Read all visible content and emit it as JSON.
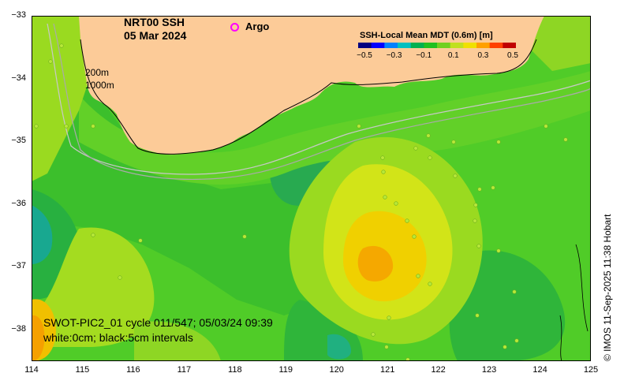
{
  "title": {
    "line1": "NRT00 SSH",
    "line2": "05 Mar 2024"
  },
  "legend": {
    "argo_label": "Argo",
    "argo_color": "#ff00ff"
  },
  "contours": {
    "label_200m": "200m",
    "label_1000m": "1000m"
  },
  "colorbar": {
    "title": "SSH-Local Mean MDT (0.6m) [m]",
    "tick_labels": [
      "−0.5",
      "−0.3",
      "−0.1",
      "0.1",
      "0.3",
      "0.5"
    ],
    "colors": [
      "#000080",
      "#0000ff",
      "#0080ff",
      "#00c0c0",
      "#00b050",
      "#20c020",
      "#70d020",
      "#c0e020",
      "#f0e000",
      "#ffa000",
      "#ff4000",
      "#c00000"
    ]
  },
  "axes": {
    "x_ticks": [
      "114",
      "115",
      "116",
      "117",
      "118",
      "119",
      "120",
      "121",
      "122",
      "123",
      "124",
      "125"
    ],
    "y_ticks": [
      "−33",
      "−34",
      "−35",
      "−36",
      "−37",
      "−38"
    ],
    "lon_range": [
      114,
      125
    ],
    "lat_range": [
      -38.5,
      -33
    ]
  },
  "info": {
    "line1": "SWOT-PIC2_01 cycle 011/547; 05/03/24 09:39",
    "line2": "white:0cm; black:5cm intervals"
  },
  "credit": "© IMOS 11-Sep-2025 11:38 Hobart",
  "colors": {
    "land": "#fccb98",
    "base_field": "#50cc28"
  }
}
